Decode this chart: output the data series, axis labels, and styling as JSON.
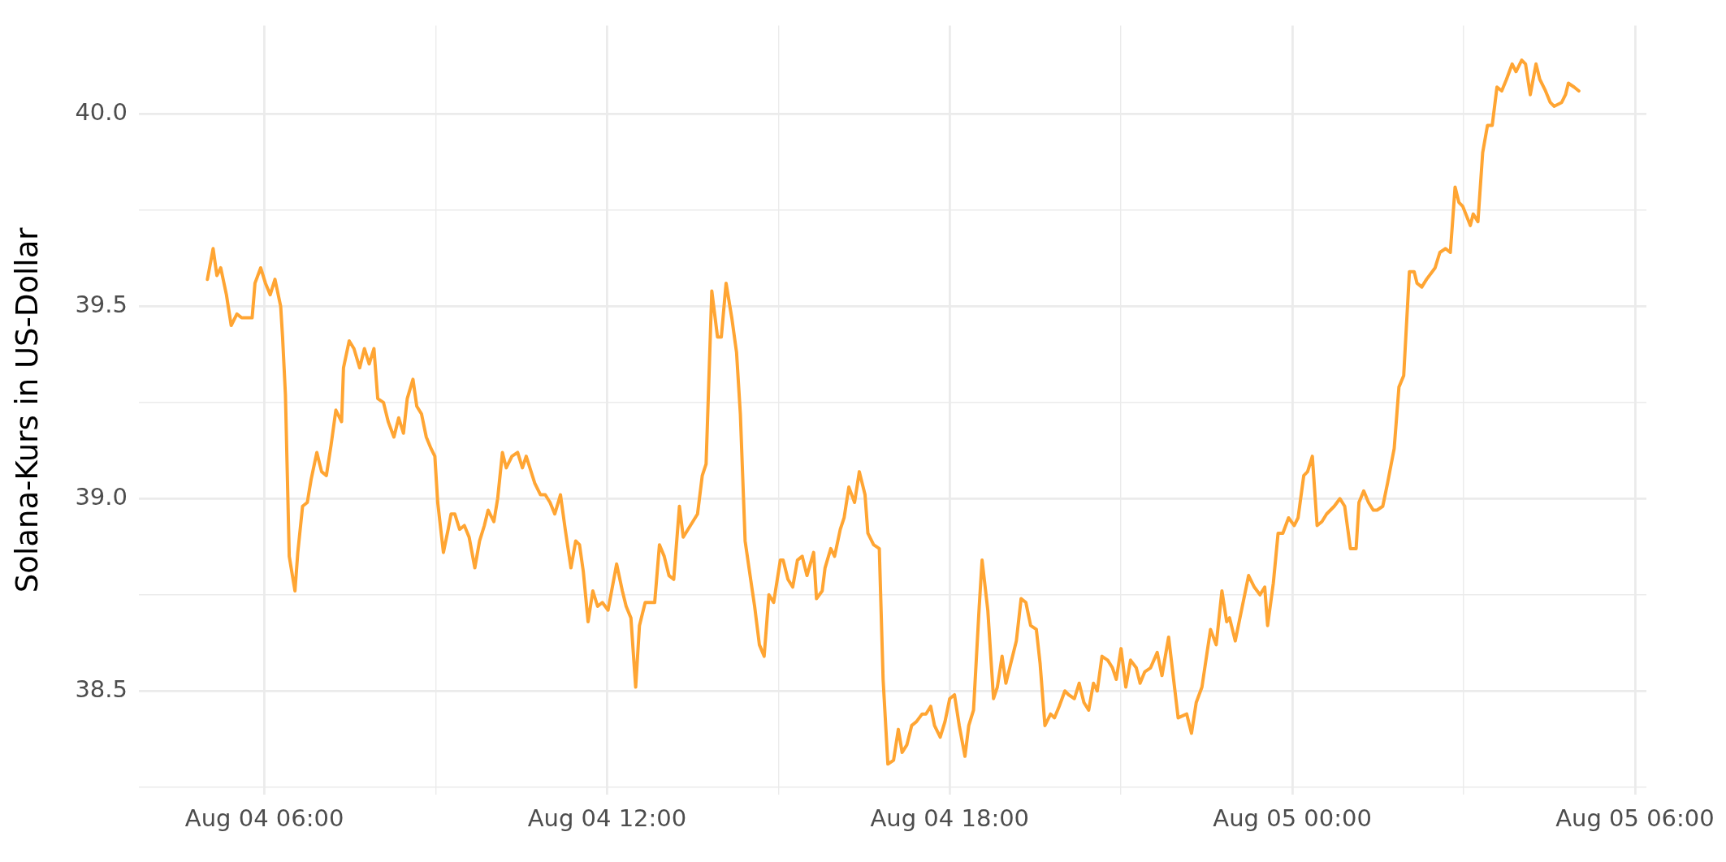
{
  "chart_data": {
    "type": "line",
    "ylabel": "Solana-Kurs in US-Dollar",
    "color": "#ffa533",
    "grid": true,
    "xlim": [
      "--08-04T03:48",
      "--08-05T06:12"
    ],
    "xticks": [
      {
        "value": "--08-04T06:00",
        "label": "Aug 04 06:00"
      },
      {
        "value": "--08-04T09:00",
        "label": null
      },
      {
        "value": "--08-04T12:00",
        "label": "Aug 04 12:00"
      },
      {
        "value": "--08-04T15:00",
        "label": null
      },
      {
        "value": "--08-04T18:00",
        "label": "Aug 04 18:00"
      },
      {
        "value": "--08-04T21:00",
        "label": null
      },
      {
        "value": "--08-05T00:00",
        "label": "Aug 05 00:00"
      },
      {
        "value": "--08-05T03:00",
        "label": null
      },
      {
        "value": "--08-05T06:00",
        "label": "Aug 05 06:00"
      }
    ],
    "ylim": [
      38.23,
      40.23
    ],
    "yticks": [
      {
        "value": 38.25,
        "label": null
      },
      {
        "value": 38.5,
        "label": "38.5"
      },
      {
        "value": 38.75,
        "label": null
      },
      {
        "value": 39,
        "label": "39.0"
      },
      {
        "value": 39.25,
        "label": null
      },
      {
        "value": 39.5,
        "label": "39.5"
      },
      {
        "value": 39.75,
        "label": null
      },
      {
        "value": 40,
        "label": "40.0"
      }
    ],
    "x": [
      "--08-04T05:00",
      "--08-04T05:06",
      "--08-04T05:10",
      "--08-04T05:14",
      "--08-04T05:20",
      "--08-04T05:25",
      "--08-04T05:31",
      "--08-04T05:36",
      "--08-04T05:42",
      "--08-04T05:47",
      "--08-04T05:50",
      "--08-04T05:56",
      "--08-04T06:01",
      "--08-04T06:06",
      "--08-04T06:11",
      "--08-04T06:17",
      "--08-04T06:19",
      "--08-04T06:22",
      "--08-04T06:26",
      "--08-04T06:32",
      "--08-04T06:35",
      "--08-04T06:40",
      "--08-04T06:45",
      "--08-04T06:49",
      "--08-04T06:55",
      "--08-04T07:00",
      "--08-04T07:05",
      "--08-04T07:10",
      "--08-04T07:15",
      "--08-04T07:21",
      "--08-04T07:23",
      "--08-04T07:29",
      "--08-04T07:34",
      "--08-04T07:40",
      "--08-04T07:45",
      "--08-04T07:50",
      "--08-04T07:55",
      "--08-04T07:59",
      "--08-04T08:05",
      "--08-04T08:10",
      "--08-04T08:16",
      "--08-04T08:21",
      "--08-04T08:26",
      "--08-04T08:30",
      "--08-04T08:36",
      "--08-04T08:40",
      "--08-04T08:45",
      "--08-04T08:50",
      "--08-04T08:55",
      "--08-04T08:59",
      "--08-04T09:02",
      "--08-04T09:08",
      "--08-04T09:13",
      "--08-04T09:16",
      "--08-04T09:20",
      "--08-04T09:25",
      "--08-04T09:30",
      "--08-04T09:35",
      "--08-04T09:41",
      "--08-04T09:46",
      "--08-04T09:51",
      "--08-04T09:55",
      "--08-04T10:01",
      "--08-04T10:05",
      "--08-04T10:10",
      "--08-04T10:14",
      "--08-04T10:20",
      "--08-04T10:26",
      "--08-04T10:31",
      "--08-04T10:35",
      "--08-04T10:44",
      "--08-04T10:50",
      "--08-04T10:55",
      "--08-04T11:00",
      "--08-04T11:05",
      "--08-04T11:11",
      "--08-04T11:16",
      "--08-04T11:22",
      "--08-04T11:27",
      "--08-04T11:31",
      "--08-04T11:35",
      "--08-04T11:40",
      "--08-04T11:45",
      "--08-04T11:50",
      "--08-04T11:55",
      "--08-04T12:01",
      "--08-04T12:10",
      "--08-04T12:16",
      "--08-04T12:20",
      "--08-04T12:25",
      "--08-04T12:30",
      "--08-04T12:34",
      "--08-04T12:40",
      "--08-04T12:50",
      "--08-04T12:55",
      "--08-04T13:00",
      "--08-04T13:05",
      "--08-04T13:10",
      "--08-04T13:16",
      "--08-04T13:20",
      "--08-04T13:25",
      "--08-04T13:35",
      "--08-04T13:40",
      "--08-04T13:44",
      "--08-04T13:50",
      "--08-04T13:56",
      "--08-04T14:00",
      "--08-04T14:05",
      "--08-04T14:11",
      "--08-04T14:16",
      "--08-04T14:20",
      "--08-04T14:25",
      "--08-04T14:32",
      "--08-04T14:35",
      "--08-04T14:40",
      "--08-04T14:45",
      "--08-04T14:50",
      "--08-04T14:55",
      "--08-04T15:02",
      "--08-04T15:05",
      "--08-04T15:10",
      "--08-04T15:15",
      "--08-04T15:20",
      "--08-04T15:25",
      "--08-04T15:30",
      "--08-04T15:37",
      "--08-04T15:40",
      "--08-04T15:46",
      "--08-04T15:49",
      "--08-04T15:55",
      "--08-04T15:59",
      "--08-04T16:05",
      "--08-04T16:09",
      "--08-04T16:14",
      "--08-04T16:20",
      "--08-04T16:25",
      "--08-04T16:31",
      "--08-04T16:34",
      "--08-04T16:40",
      "--08-04T16:46",
      "--08-04T16:50",
      "--08-04T16:55",
      "--08-04T17:01",
      "--08-04T17:06",
      "--08-04T17:10",
      "--08-04T17:15",
      "--08-04T17:20",
      "--08-04T17:25",
      "--08-04T17:31",
      "--08-04T17:35",
      "--08-04T17:40",
      "--08-04T17:44",
      "--08-04T17:50",
      "--08-04T17:55",
      "--08-04T18:00",
      "--08-04T18:05",
      "--08-04T18:10",
      "--08-04T18:16",
      "--08-04T18:20",
      "--08-04T18:25",
      "--08-04T18:31",
      "--08-04T18:34",
      "--08-04T18:40",
      "--08-04T18:46",
      "--08-04T18:50",
      "--08-04T18:55",
      "--08-04T18:59",
      "--08-04T19:05",
      "--08-04T19:10",
      "--08-04T19:15",
      "--08-04T19:20",
      "--08-04T19:25",
      "--08-04T19:31",
      "--08-04T19:35",
      "--08-04T19:40",
      "--08-04T19:46",
      "--08-04T19:50",
      "--08-04T19:55",
      "--08-04T20:01",
      "--08-04T20:05",
      "--08-04T20:11",
      "--08-04T20:16",
      "--08-04T20:21",
      "--08-04T20:26",
      "--08-04T20:31",
      "--08-04T20:35",
      "--08-04T20:40",
      "--08-04T20:46",
      "--08-04T20:51",
      "--08-04T20:55",
      "--08-04T21:00",
      "--08-04T21:05",
      "--08-04T21:10",
      "--08-04T21:16",
      "--08-04T21:20",
      "--08-04T21:25",
      "--08-04T21:31",
      "--08-04T21:38",
      "--08-04T21:43",
      "--08-04T21:50",
      "--08-04T22:00",
      "--08-04T22:09",
      "--08-04T22:14",
      "--08-04T22:19",
      "--08-04T22:25",
      "--08-04T22:34",
      "--08-04T22:40",
      "--08-04T22:46",
      "--08-04T22:51",
      "--08-04T22:54",
      "--08-04T23:00",
      "--08-04T23:14",
      "--08-04T23:20",
      "--08-04T23:26",
      "--08-04T23:31",
      "--08-04T23:34",
      "--08-04T23:40",
      "--08-04T23:45",
      "--08-04T23:50",
      "--08-04T23:56",
      "--08-05T00:02",
      "--08-05T00:06",
      "--08-05T00:12",
      "--08-05T00:16",
      "--08-05T00:21",
      "--08-05T00:26",
      "--08-05T00:31",
      "--08-05T00:36",
      "--08-05T00:44",
      "--08-05T00:50",
      "--08-05T00:55",
      "--08-05T01:01",
      "--08-05T01:07",
      "--08-05T01:10",
      "--08-05T01:15",
      "--08-05T01:20",
      "--08-05T01:25",
      "--08-05T01:29",
      "--08-05T01:35",
      "--08-05T01:40",
      "--08-05T01:47",
      "--08-05T01:52",
      "--08-05T01:57",
      "--08-05T02:03",
      "--08-05T02:08",
      "--08-05T02:11",
      "--08-05T02:16",
      "--08-05T02:21",
      "--08-05T02:30",
      "--08-05T02:35",
      "--08-05T02:41",
      "--08-05T02:46",
      "--08-05T02:51",
      "--08-05T02:55",
      "--08-05T02:59",
      "--08-05T03:07",
      "--08-05T03:10",
      "--08-05T03:15",
      "--08-05T03:20",
      "--08-05T03:25",
      "--08-05T03:30",
      "--08-05T03:35",
      "--08-05T03:40",
      "--08-05T03:45",
      "--08-05T03:51",
      "--08-05T03:55",
      "--08-05T04:01",
      "--08-05T04:05",
      "--08-05T04:10",
      "--08-05T04:16",
      "--08-05T04:20",
      "--08-05T04:26",
      "--08-05T04:31",
      "--08-05T04:35",
      "--08-05T04:43",
      "--08-05T04:47",
      "--08-05T04:50",
      "--08-05T04:56",
      "--08-05T05:01"
    ],
    "values": [
      39.57,
      39.65,
      39.58,
      39.6,
      39.53,
      39.45,
      39.48,
      39.47,
      39.47,
      39.47,
      39.56,
      39.6,
      39.56,
      39.53,
      39.57,
      39.5,
      39.42,
      39.27,
      38.85,
      38.76,
      38.86,
      38.98,
      38.99,
      39.05,
      39.12,
      39.07,
      39.06,
      39.14,
      39.23,
      39.2,
      39.34,
      39.41,
      39.39,
      39.34,
      39.39,
      39.35,
      39.39,
      39.26,
      39.25,
      39.2,
      39.16,
      39.21,
      39.17,
      39.26,
      39.31,
      39.24,
      39.22,
      39.16,
      39.13,
      39.11,
      38.99,
      38.86,
      38.92,
      38.96,
      38.96,
      38.92,
      38.93,
      38.9,
      38.82,
      38.89,
      38.93,
      38.97,
      38.94,
      39.0,
      39.12,
      39.08,
      39.11,
      39.12,
      39.08,
      39.11,
      39.04,
      39.01,
      39.01,
      38.99,
      38.96,
      39.01,
      38.92,
      38.82,
      38.89,
      38.88,
      38.81,
      38.68,
      38.76,
      38.72,
      38.73,
      38.71,
      38.83,
      38.76,
      38.72,
      38.69,
      38.51,
      38.67,
      38.73,
      38.73,
      38.88,
      38.85,
      38.8,
      38.79,
      38.98,
      38.9,
      38.92,
      38.96,
      39.06,
      39.09,
      39.54,
      39.42,
      39.42,
      39.56,
      39.47,
      39.38,
      39.22,
      38.89,
      38.77,
      38.72,
      38.62,
      38.59,
      38.75,
      38.73,
      38.84,
      38.84,
      38.79,
      38.77,
      38.84,
      38.85,
      38.8,
      38.86,
      38.74,
      38.76,
      38.82,
      38.87,
      38.85,
      38.92,
      38.95,
      39.03,
      38.99,
      39.07,
      39.01,
      38.91,
      38.88,
      38.87,
      38.53,
      38.31,
      38.32,
      38.4,
      38.34,
      38.36,
      38.41,
      38.42,
      38.44,
      38.44,
      38.46,
      38.41,
      38.38,
      38.42,
      38.48,
      38.49,
      38.41,
      38.33,
      38.41,
      38.45,
      38.72,
      38.84,
      38.71,
      38.48,
      38.51,
      38.59,
      38.52,
      38.58,
      38.63,
      38.74,
      38.73,
      38.67,
      38.66,
      38.57,
      38.41,
      38.44,
      38.43,
      38.46,
      38.5,
      38.49,
      38.48,
      38.52,
      38.47,
      38.45,
      38.52,
      38.5,
      38.59,
      38.58,
      38.56,
      38.53,
      38.61,
      38.51,
      38.58,
      38.56,
      38.52,
      38.55,
      38.56,
      38.6,
      38.54,
      38.64,
      38.43,
      38.44,
      38.39,
      38.47,
      38.51,
      38.66,
      38.62,
      38.76,
      38.68,
      38.69,
      38.63,
      38.8,
      38.77,
      38.75,
      38.77,
      38.67,
      38.78,
      38.91,
      38.91,
      38.95,
      38.93,
      38.95,
      39.06,
      39.07,
      39.11,
      38.93,
      38.94,
      38.96,
      38.98,
      39.0,
      38.98,
      38.87,
      38.87,
      38.99,
      39.02,
      38.99,
      38.97,
      38.97,
      38.98,
      39.04,
      39.13,
      39.29,
      39.32,
      39.59,
      39.59,
      39.56,
      39.55,
      39.57,
      39.6,
      39.64,
      39.65,
      39.64,
      39.81,
      39.77,
      39.76,
      39.71,
      39.74,
      39.72,
      39.9,
      39.97,
      39.97,
      40.07,
      40.06,
      40.09,
      40.13,
      40.11,
      40.14,
      40.13,
      40.05,
      40.13,
      40.09,
      40.06,
      40.03,
      40.02,
      40.03,
      40.05,
      40.08,
      40.07,
      40.06
    ]
  }
}
